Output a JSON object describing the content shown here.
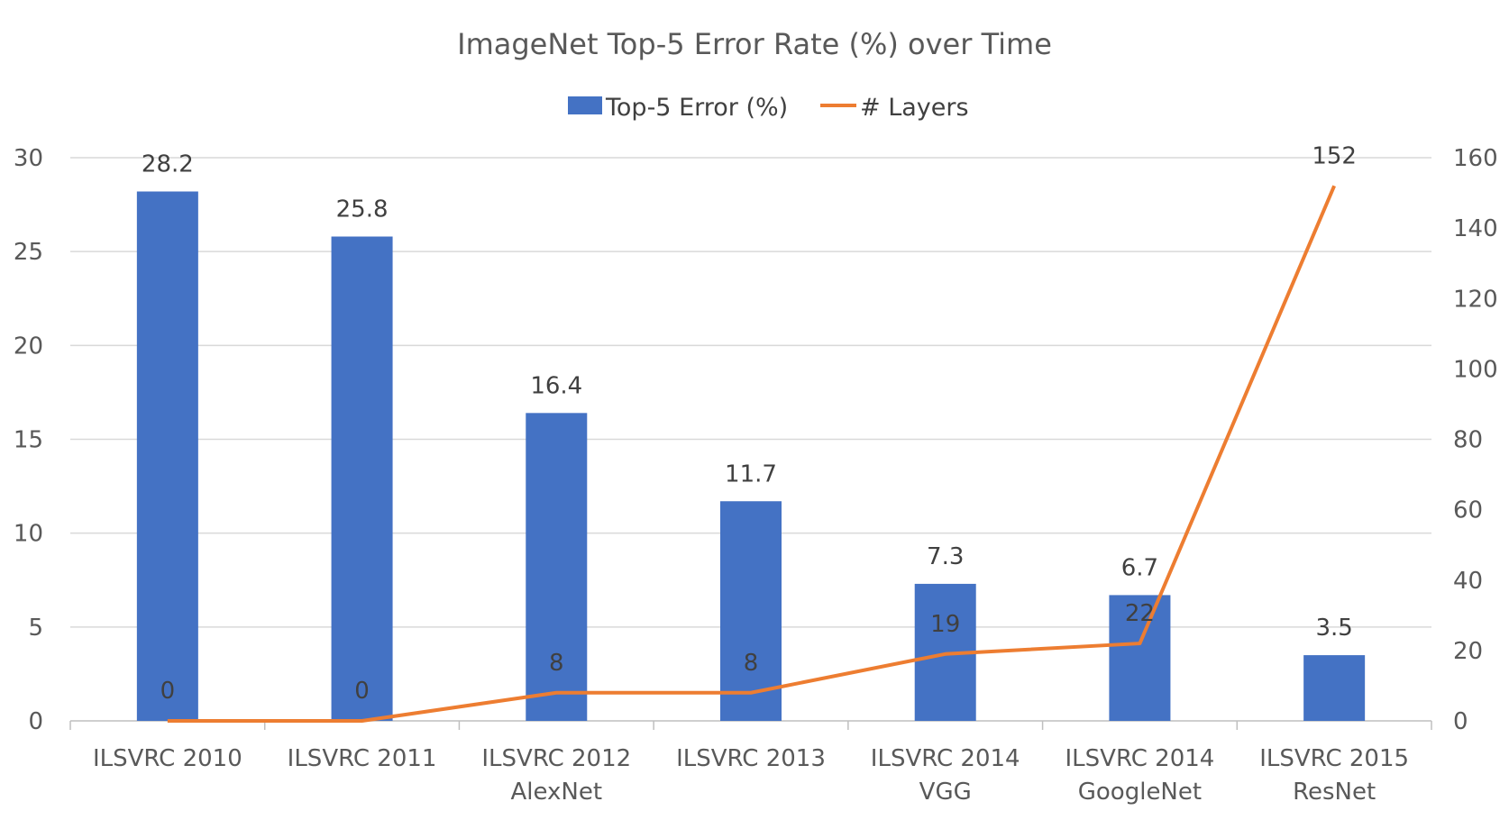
{
  "chart_data": {
    "type": "bar",
    "title": "ImageNet Top-5 Error Rate (%) over Time",
    "categories": [
      [
        "ILSVRC 2010"
      ],
      [
        "ILSVRC 2011"
      ],
      [
        "ILSVRC 2012",
        "AlexNet"
      ],
      [
        "ILSVRC 2013"
      ],
      [
        "ILSVRC 2014",
        "VGG"
      ],
      [
        "ILSVRC 2014",
        "GoogleNet"
      ],
      [
        "ILSVRC 2015",
        "ResNet"
      ]
    ],
    "series": [
      {
        "name": "Top-5 Error (%)",
        "type": "bar",
        "axis": "left",
        "color": "#4472c4",
        "values": [
          28.2,
          25.8,
          16.4,
          11.7,
          7.3,
          6.7,
          3.5
        ]
      },
      {
        "name": "# Layers",
        "type": "line",
        "axis": "right",
        "color": "#ed7d31",
        "values": [
          0,
          0,
          8,
          8,
          19,
          22,
          152
        ]
      }
    ],
    "y_left": {
      "min": 0,
      "max": 30,
      "ticks": [
        0,
        5,
        10,
        15,
        20,
        25,
        30
      ]
    },
    "y_right": {
      "min": 0,
      "max": 160,
      "ticks": [
        0,
        20,
        40,
        60,
        80,
        100,
        120,
        140,
        160
      ]
    },
    "grid": true,
    "legend_position": "top"
  }
}
